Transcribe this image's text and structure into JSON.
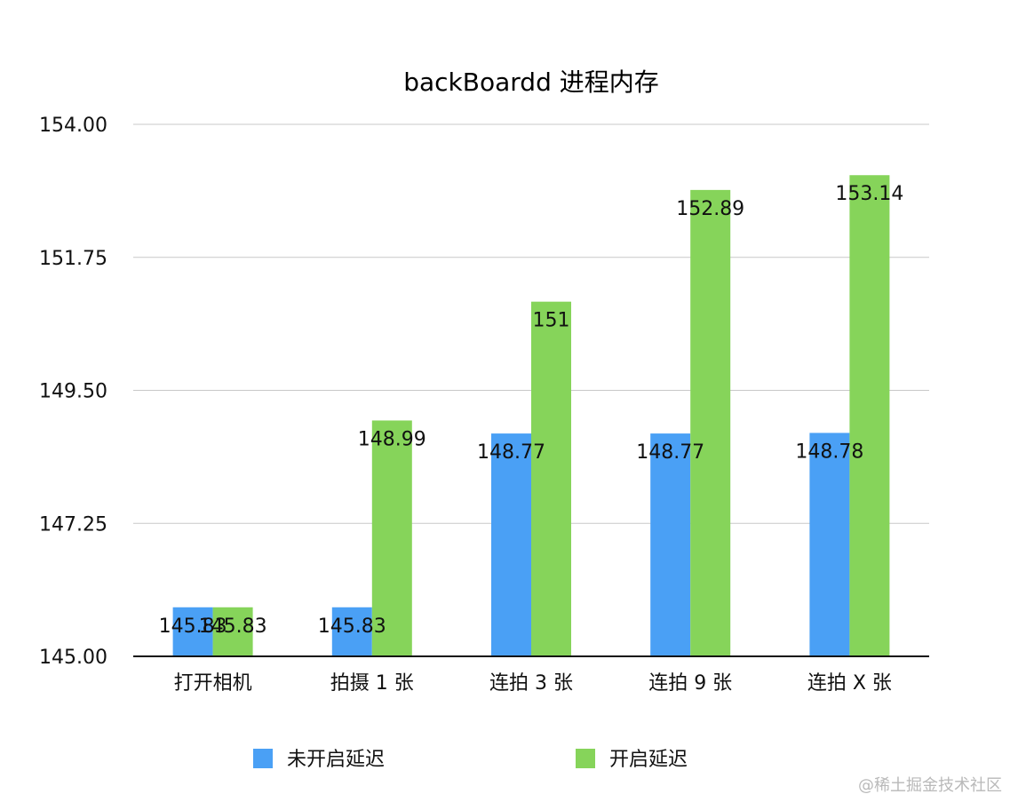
{
  "chart_data": {
    "type": "bar",
    "title": "backBoardd 进程内存",
    "xlabel": "",
    "ylabel": "",
    "ylim": [
      145.0,
      154.0
    ],
    "yticks": [
      "145.00",
      "147.25",
      "149.50",
      "151.75",
      "154.00"
    ],
    "grid": true,
    "legend_position": "bottom",
    "categories": [
      "打开相机",
      "拍摄 1 张",
      "连拍 3 张",
      "连拍 9 张",
      "连拍 X 张"
    ],
    "series": [
      {
        "name": "未开启延迟",
        "color": "#4aa0f5",
        "values": [
          145.83,
          145.83,
          148.77,
          148.77,
          148.78
        ],
        "labels": [
          "145.83",
          "145.83",
          "148.77",
          "148.77",
          "148.78"
        ]
      },
      {
        "name": "开启延迟",
        "color": "#86d45a",
        "values": [
          145.83,
          148.99,
          151.0,
          152.89,
          153.14
        ],
        "labels": [
          "145.83",
          "148.99",
          "151",
          "152.89",
          "153.14"
        ]
      }
    ]
  },
  "watermark": "@稀土掘金技术社区"
}
